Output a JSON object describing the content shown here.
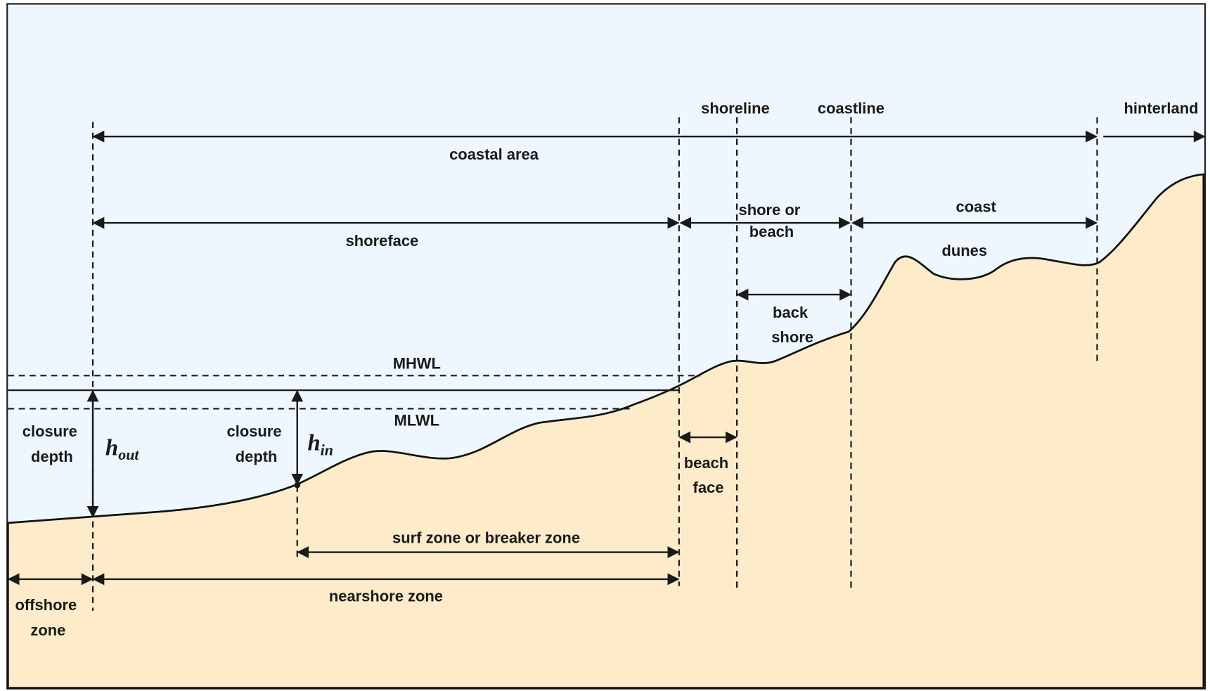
{
  "labels": {
    "shoreline": "shoreline",
    "coastline": "coastline",
    "hinterland": "hinterland",
    "coastal_area": "coastal area",
    "shoreface": "shoreface",
    "shore_or_beach": [
      "shore or",
      "beach"
    ],
    "coast": "coast",
    "dunes": "dunes",
    "back_shore": [
      "back",
      "shore"
    ],
    "mhwl": "MHWL",
    "mlwl": "MLWL",
    "closure_depth_out": [
      "closure",
      "depth"
    ],
    "h_out": {
      "base": "h",
      "sub": "out"
    },
    "closure_depth_in": [
      "closure",
      "depth"
    ],
    "h_in": {
      "base": "h",
      "sub": "in"
    },
    "beach_face": [
      "beach",
      "face"
    ],
    "surf_zone": "surf zone or breaker zone",
    "nearshore_zone": "nearshore zone",
    "offshore_zone": [
      "offshore",
      "zone"
    ]
  }
}
